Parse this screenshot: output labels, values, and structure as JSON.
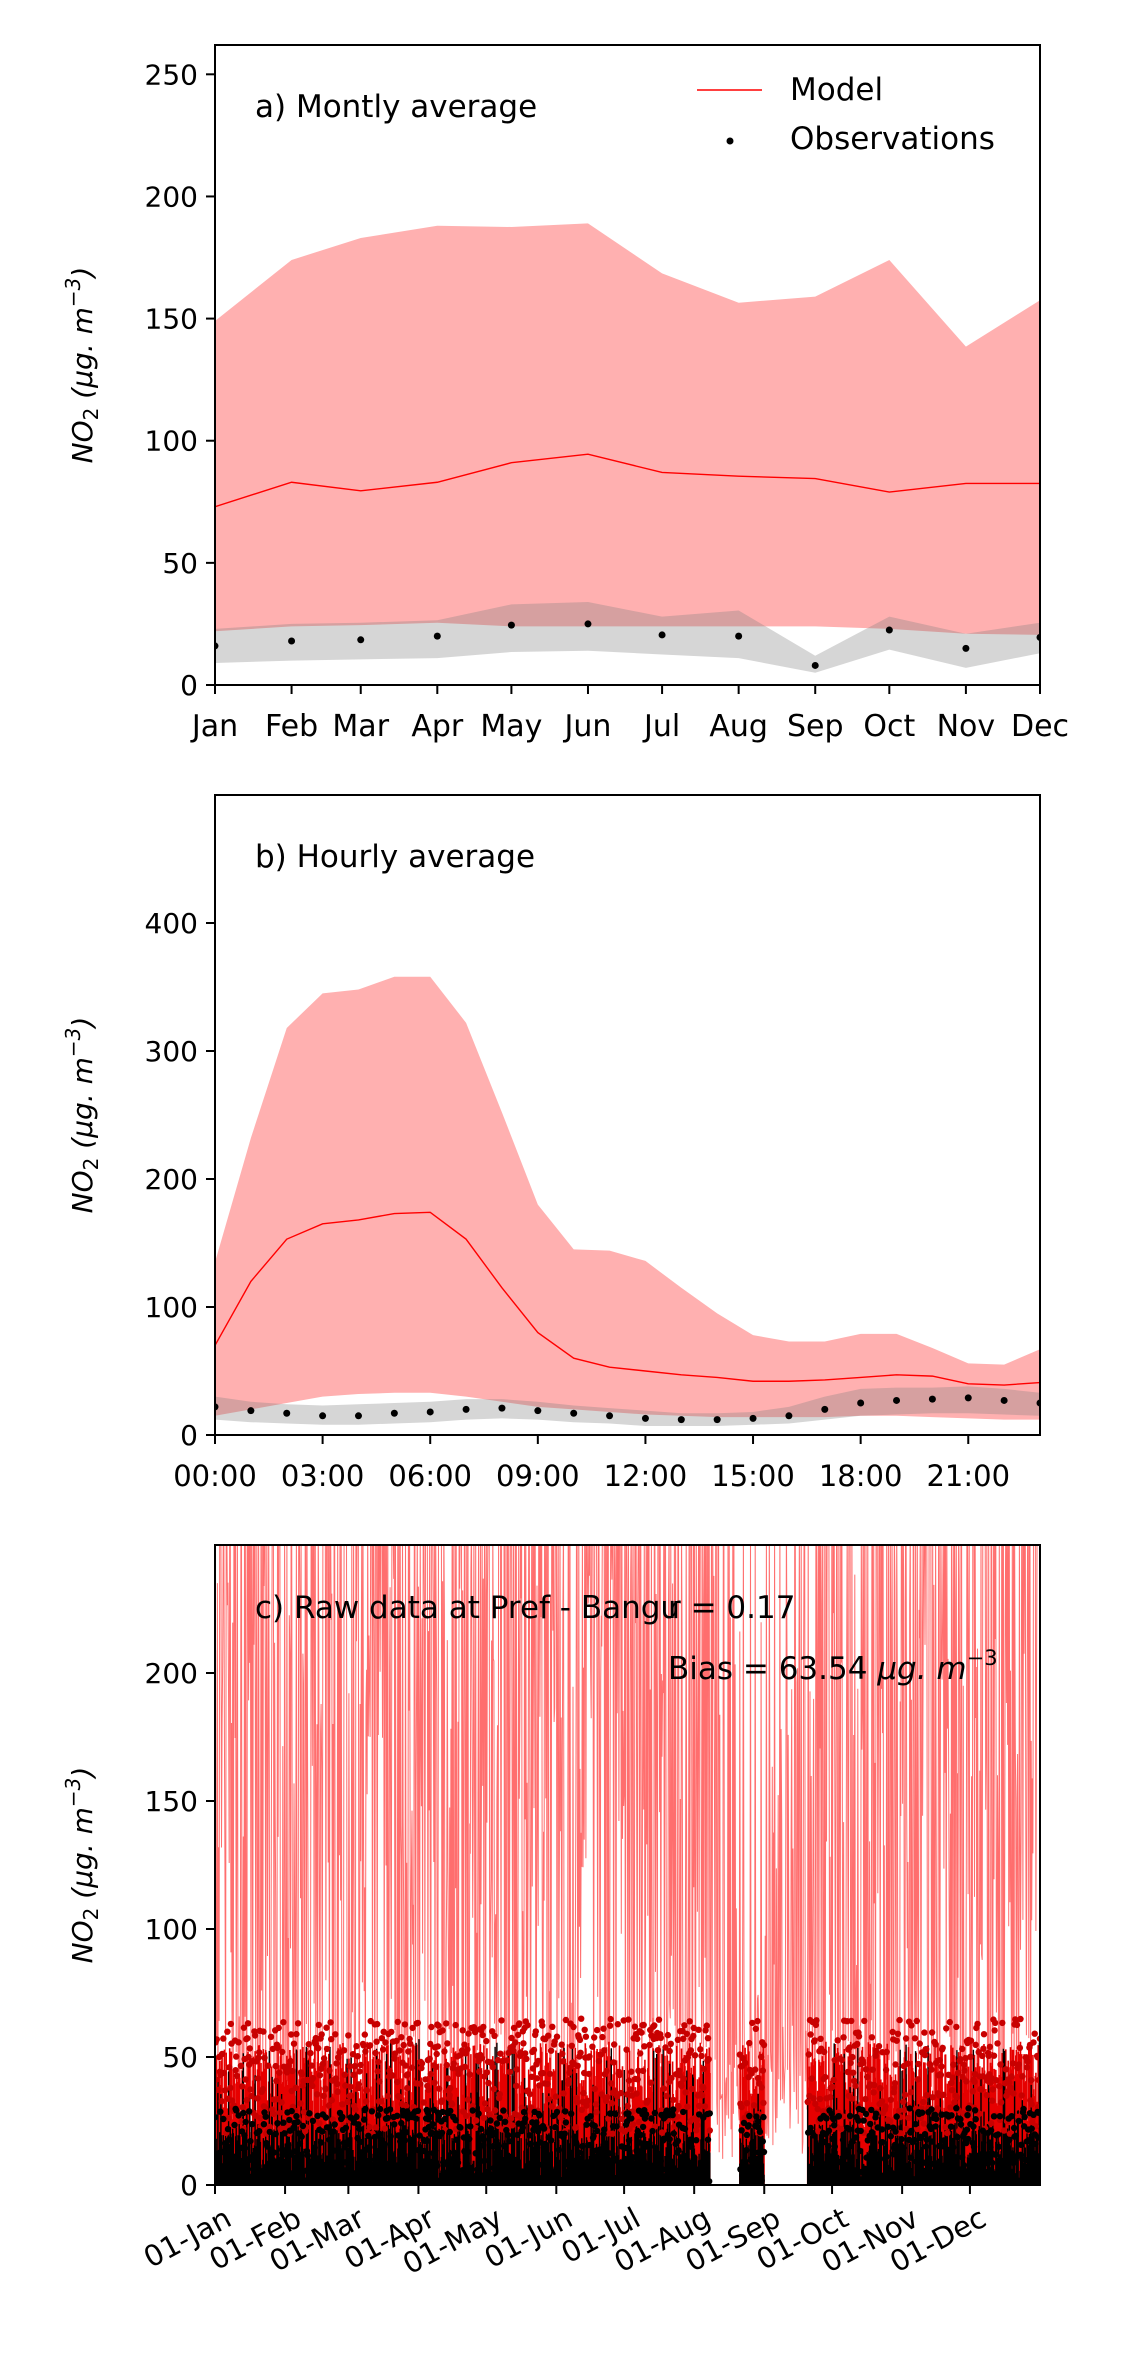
{
  "chart_data": [
    {
      "type": "area",
      "panel_label": "a) Montly average",
      "ylabel_base": "NO",
      "ylabel_sub": "2",
      "ylabel_unit": "(μg. m",
      "ylabel_exp": "−3",
      "ylim": [
        0,
        262
      ],
      "yticks": [
        0,
        50,
        100,
        150,
        200,
        250
      ],
      "categories": [
        "Jan",
        "Feb",
        "Mar",
        "Apr",
        "May",
        "Jun",
        "Jul",
        "Aug",
        "Sep",
        "Oct",
        "Nov",
        "Dec"
      ],
      "x": [
        1,
        32,
        60,
        91,
        121,
        152,
        182,
        213,
        244,
        274,
        305,
        335
      ],
      "xlim": [
        1,
        335
      ],
      "legend": {
        "position": "top-right",
        "entries": [
          "Model",
          "Observations"
        ]
      },
      "series": [
        {
          "name": "Model",
          "color": "#ff0000",
          "values": [
            73,
            83,
            79.5,
            83,
            91,
            94.5,
            87,
            85.5,
            84.5,
            79,
            82.5,
            82.5
          ],
          "band_upper": [
            149,
            174,
            183,
            188,
            187.5,
            189,
            168.5,
            156.5,
            159,
            174,
            138.5,
            157.5
          ],
          "band_lower": [
            22,
            24,
            24.5,
            25.5,
            24,
            24,
            24,
            24,
            24,
            23,
            21,
            20.5
          ]
        },
        {
          "name": "Observations",
          "color": "#000000",
          "values": [
            16,
            18,
            18.5,
            20,
            24.5,
            25,
            20.5,
            20,
            8,
            22.5,
            15,
            19.5
          ],
          "band_upper": [
            23,
            25,
            25.5,
            26.5,
            33,
            34,
            28,
            30.5,
            12,
            28,
            21,
            25.5
          ],
          "band_lower": [
            9,
            10,
            10.5,
            11,
            13.5,
            14,
            12.5,
            11,
            5,
            14.5,
            7,
            13
          ]
        }
      ]
    },
    {
      "type": "area",
      "panel_label": "b) Hourly average",
      "ylabel_base": "NO",
      "ylabel_sub": "2",
      "ylabel_unit": "(μg. m",
      "ylabel_exp": "−3",
      "ylim": [
        0,
        500
      ],
      "yticks": [
        0,
        100,
        200,
        300,
        400
      ],
      "xlim": [
        0,
        23
      ],
      "xticks": [
        0,
        3,
        6,
        9,
        12,
        15,
        18,
        21
      ],
      "xtick_labels": [
        "00:00",
        "03:00",
        "06:00",
        "09:00",
        "12:00",
        "15:00",
        "18:00",
        "21:00"
      ],
      "x": [
        0,
        1,
        2,
        3,
        4,
        5,
        6,
        7,
        8,
        9,
        10,
        11,
        12,
        13,
        14,
        15,
        16,
        17,
        18,
        19,
        20,
        21,
        22,
        23
      ],
      "series": [
        {
          "name": "Model",
          "color": "#ff0000",
          "values": [
            70,
            120,
            153,
            165,
            168,
            173,
            174,
            153,
            115,
            80,
            60,
            53,
            50,
            47,
            45,
            42,
            42,
            43,
            45,
            47,
            46,
            40,
            39,
            41
          ],
          "band_upper": [
            135,
            232,
            318,
            345,
            348,
            358,
            358,
            322,
            252,
            180,
            145,
            144,
            136,
            115,
            95,
            78,
            73,
            73,
            79,
            79,
            68,
            56,
            55,
            67
          ],
          "band_lower": [
            15,
            20,
            25,
            30,
            32,
            33,
            33,
            30,
            26,
            22,
            20,
            18,
            16,
            15,
            14,
            14,
            14,
            14,
            15,
            15,
            14,
            13,
            12,
            12
          ]
        },
        {
          "name": "Observations",
          "color": "#000000",
          "values": [
            22,
            19,
            17,
            15,
            15,
            17,
            18,
            20,
            21,
            19,
            17,
            15,
            13,
            12,
            12,
            13,
            15,
            20,
            25,
            27,
            28,
            29,
            27,
            25
          ],
          "band_upper": [
            30,
            26,
            24,
            23,
            24,
            25,
            26,
            28,
            28,
            26,
            23,
            21,
            19,
            17,
            17,
            18,
            22,
            30,
            36,
            37,
            37,
            38,
            36,
            33
          ],
          "band_lower": [
            12,
            10,
            9,
            8,
            8,
            9,
            10,
            12,
            13,
            12,
            10,
            9,
            7,
            7,
            7,
            8,
            9,
            12,
            15,
            16,
            17,
            17,
            16,
            15
          ]
        }
      ]
    },
    {
      "type": "line",
      "panel_label": "c) Raw data at Pref - Bangu",
      "r_text": "r = 0.17",
      "bias_text": "Bias = 63.54 ",
      "bias_unit": "μg. m",
      "bias_exp": "−3",
      "ylabel_base": "NO",
      "ylabel_sub": "2",
      "ylabel_unit": "(μg. m",
      "ylabel_exp": "−3",
      "ylim": [
        0,
        250
      ],
      "yticks": [
        0,
        50,
        100,
        150,
        200
      ],
      "xlim": [
        0,
        365
      ],
      "xticks": [
        0,
        31,
        59,
        90,
        120,
        151,
        181,
        212,
        243,
        273,
        304,
        334
      ],
      "xtick_labels": [
        "01-Jan",
        "01-Feb",
        "01-Mar",
        "01-Apr",
        "01-May",
        "01-Jun",
        "01-Jul",
        "01-Aug",
        "01-Sep",
        "01-Oct",
        "01-Nov",
        "01-Dec"
      ],
      "observation_gaps": [
        [
          219,
          232
        ],
        [
          243,
          262
        ]
      ],
      "series": [
        {
          "name": "Model",
          "color": "#ff0000",
          "typical_range": [
            5,
            250
          ],
          "mean": 82
        },
        {
          "name": "Observations",
          "color": "#000000",
          "typical_range": [
            0,
            75
          ],
          "mean": 18
        }
      ]
    }
  ]
}
